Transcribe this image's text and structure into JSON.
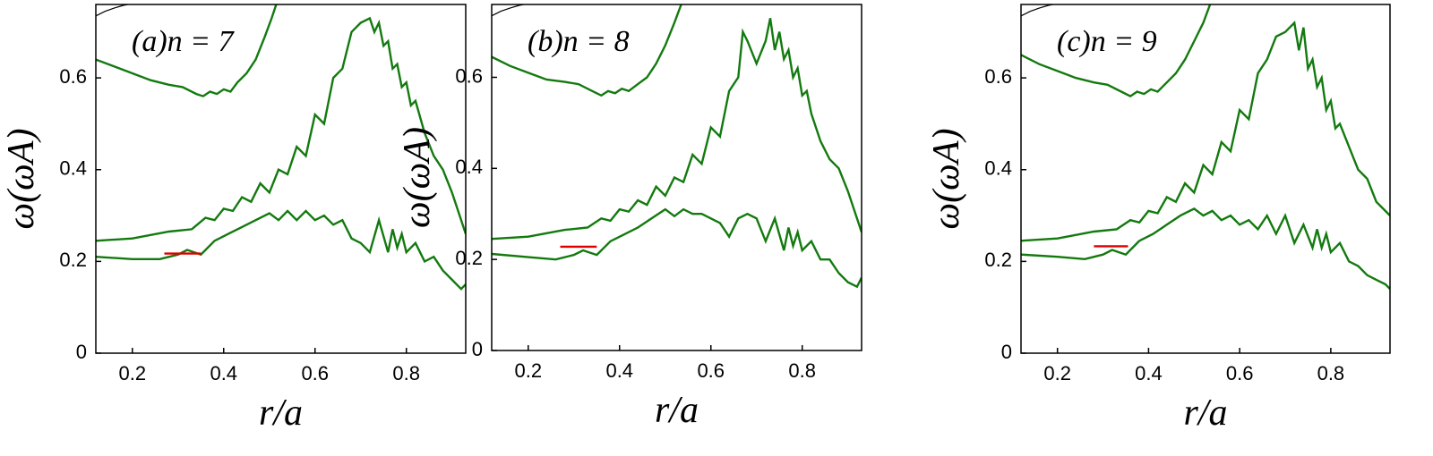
{
  "chart_data": [
    {
      "type": "line",
      "annotation": "(a)n = 7",
      "xlabel": "r/a",
      "ylabel": "ω(ωA)",
      "xlim": [
        0.12,
        0.93
      ],
      "ylim": [
        0,
        0.76
      ],
      "xticks": [
        0.2,
        0.4,
        0.6,
        0.8
      ],
      "yticks": [
        0,
        0.2,
        0.4,
        0.6
      ],
      "series": [
        {
          "color": "#000000",
          "x": [
            0.12,
            0.14,
            0.16,
            0.18,
            0.19
          ],
          "values": [
            0.735,
            0.745,
            0.752,
            0.758,
            0.76
          ]
        },
        {
          "color": "#137a0f",
          "x": [
            0.12,
            0.16,
            0.2,
            0.24,
            0.28,
            0.31,
            0.34,
            0.355,
            0.37,
            0.385,
            0.4,
            0.415,
            0.43,
            0.45,
            0.47,
            0.49,
            0.505,
            0.515
          ],
          "values": [
            0.64,
            0.625,
            0.61,
            0.595,
            0.585,
            0.58,
            0.565,
            0.56,
            0.57,
            0.565,
            0.575,
            0.57,
            0.59,
            0.61,
            0.64,
            0.69,
            0.73,
            0.76
          ]
        },
        {
          "color": "#137a0f",
          "x": [
            0.12,
            0.2,
            0.28,
            0.33,
            0.36,
            0.38,
            0.4,
            0.42,
            0.44,
            0.46,
            0.48,
            0.5,
            0.52,
            0.54,
            0.56,
            0.58,
            0.6,
            0.62,
            0.64,
            0.66,
            0.68,
            0.7,
            0.72,
            0.73,
            0.74,
            0.75,
            0.76,
            0.77,
            0.78,
            0.79,
            0.8,
            0.81,
            0.82,
            0.84,
            0.86,
            0.88,
            0.9,
            0.93
          ],
          "values": [
            0.245,
            0.25,
            0.265,
            0.27,
            0.295,
            0.29,
            0.315,
            0.31,
            0.34,
            0.33,
            0.37,
            0.35,
            0.4,
            0.39,
            0.45,
            0.43,
            0.52,
            0.5,
            0.6,
            0.62,
            0.7,
            0.72,
            0.73,
            0.7,
            0.72,
            0.67,
            0.68,
            0.62,
            0.63,
            0.58,
            0.59,
            0.54,
            0.55,
            0.48,
            0.43,
            0.4,
            0.35,
            0.26
          ]
        },
        {
          "color": "#137a0f",
          "x": [
            0.12,
            0.2,
            0.26,
            0.3,
            0.32,
            0.35,
            0.38,
            0.41,
            0.44,
            0.47,
            0.5,
            0.52,
            0.54,
            0.56,
            0.58,
            0.6,
            0.62,
            0.64,
            0.66,
            0.68,
            0.7,
            0.72,
            0.74,
            0.76,
            0.77,
            0.78,
            0.79,
            0.8,
            0.82,
            0.84,
            0.86,
            0.88,
            0.9,
            0.92,
            0.93
          ],
          "values": [
            0.21,
            0.205,
            0.205,
            0.215,
            0.225,
            0.215,
            0.245,
            0.26,
            0.275,
            0.29,
            0.305,
            0.29,
            0.31,
            0.29,
            0.31,
            0.29,
            0.3,
            0.28,
            0.29,
            0.25,
            0.24,
            0.22,
            0.29,
            0.22,
            0.27,
            0.23,
            0.26,
            0.22,
            0.24,
            0.2,
            0.21,
            0.18,
            0.16,
            0.14,
            0.15
          ]
        },
        {
          "color": "#e00000",
          "x": [
            0.27,
            0.35
          ],
          "values": [
            0.217,
            0.217
          ]
        }
      ]
    },
    {
      "type": "line",
      "annotation": "(b)n = 8",
      "xlabel": "r/a",
      "ylabel": "ω(ωA)",
      "xlim": [
        0.12,
        0.93
      ],
      "ylim": [
        0,
        0.76
      ],
      "xticks": [
        0.2,
        0.4,
        0.6,
        0.8
      ],
      "yticks": [
        0,
        0.2,
        0.4,
        0.6
      ],
      "series": [
        {
          "color": "#000000",
          "x": [
            0.12,
            0.14,
            0.16,
            0.18,
            0.19
          ],
          "values": [
            0.735,
            0.745,
            0.752,
            0.758,
            0.76
          ]
        },
        {
          "color": "#137a0f",
          "x": [
            0.12,
            0.16,
            0.2,
            0.24,
            0.28,
            0.31,
            0.34,
            0.36,
            0.375,
            0.39,
            0.405,
            0.42,
            0.44,
            0.46,
            0.48,
            0.5,
            0.52,
            0.535
          ],
          "values": [
            0.645,
            0.625,
            0.61,
            0.595,
            0.59,
            0.585,
            0.57,
            0.56,
            0.57,
            0.565,
            0.575,
            0.57,
            0.585,
            0.6,
            0.63,
            0.67,
            0.72,
            0.76
          ]
        },
        {
          "color": "#137a0f",
          "x": [
            0.12,
            0.2,
            0.28,
            0.33,
            0.36,
            0.38,
            0.4,
            0.42,
            0.44,
            0.46,
            0.48,
            0.5,
            0.52,
            0.54,
            0.56,
            0.58,
            0.6,
            0.62,
            0.64,
            0.66,
            0.67,
            0.68,
            0.7,
            0.72,
            0.73,
            0.74,
            0.75,
            0.76,
            0.77,
            0.78,
            0.79,
            0.8,
            0.81,
            0.82,
            0.84,
            0.86,
            0.88,
            0.9,
            0.93
          ],
          "values": [
            0.245,
            0.25,
            0.265,
            0.27,
            0.29,
            0.285,
            0.31,
            0.305,
            0.33,
            0.32,
            0.36,
            0.34,
            0.38,
            0.37,
            0.43,
            0.41,
            0.49,
            0.47,
            0.57,
            0.6,
            0.7,
            0.68,
            0.63,
            0.68,
            0.73,
            0.66,
            0.7,
            0.64,
            0.66,
            0.6,
            0.62,
            0.56,
            0.57,
            0.52,
            0.46,
            0.42,
            0.4,
            0.35,
            0.26
          ]
        },
        {
          "color": "#137a0f",
          "x": [
            0.12,
            0.2,
            0.26,
            0.3,
            0.32,
            0.35,
            0.38,
            0.41,
            0.44,
            0.47,
            0.5,
            0.52,
            0.54,
            0.56,
            0.58,
            0.6,
            0.62,
            0.64,
            0.66,
            0.68,
            0.7,
            0.72,
            0.74,
            0.76,
            0.77,
            0.78,
            0.79,
            0.8,
            0.82,
            0.84,
            0.86,
            0.88,
            0.9,
            0.92,
            0.93
          ],
          "values": [
            0.212,
            0.205,
            0.2,
            0.21,
            0.22,
            0.21,
            0.24,
            0.255,
            0.27,
            0.29,
            0.31,
            0.295,
            0.31,
            0.3,
            0.3,
            0.29,
            0.28,
            0.25,
            0.29,
            0.3,
            0.29,
            0.24,
            0.29,
            0.22,
            0.27,
            0.23,
            0.26,
            0.22,
            0.24,
            0.2,
            0.2,
            0.17,
            0.15,
            0.14,
            0.16
          ]
        },
        {
          "color": "#e00000",
          "x": [
            0.27,
            0.35
          ],
          "values": [
            0.228,
            0.228
          ]
        }
      ]
    },
    {
      "type": "line",
      "annotation": "(c)n = 9",
      "xlabel": "r/a",
      "ylabel": "ω(ωA)",
      "xlim": [
        0.12,
        0.93
      ],
      "ylim": [
        0,
        0.76
      ],
      "xticks": [
        0.2,
        0.4,
        0.6,
        0.8
      ],
      "yticks": [
        0,
        0.2,
        0.4,
        0.6
      ],
      "series": [
        {
          "color": "#000000",
          "x": [
            0.12,
            0.14,
            0.16,
            0.18,
            0.19
          ],
          "values": [
            0.735,
            0.745,
            0.752,
            0.758,
            0.76
          ]
        },
        {
          "color": "#137a0f",
          "x": [
            0.12,
            0.16,
            0.2,
            0.24,
            0.28,
            0.31,
            0.34,
            0.36,
            0.375,
            0.39,
            0.405,
            0.42,
            0.44,
            0.46,
            0.48,
            0.5,
            0.52,
            0.535
          ],
          "values": [
            0.65,
            0.63,
            0.615,
            0.6,
            0.59,
            0.585,
            0.57,
            0.56,
            0.57,
            0.565,
            0.575,
            0.57,
            0.59,
            0.61,
            0.64,
            0.68,
            0.72,
            0.76
          ]
        },
        {
          "color": "#137a0f",
          "x": [
            0.12,
            0.2,
            0.28,
            0.33,
            0.36,
            0.38,
            0.4,
            0.42,
            0.44,
            0.46,
            0.48,
            0.5,
            0.52,
            0.54,
            0.56,
            0.58,
            0.6,
            0.62,
            0.64,
            0.66,
            0.68,
            0.7,
            0.72,
            0.73,
            0.74,
            0.75,
            0.76,
            0.77,
            0.78,
            0.79,
            0.8,
            0.81,
            0.82,
            0.84,
            0.86,
            0.88,
            0.9,
            0.93
          ],
          "values": [
            0.245,
            0.25,
            0.265,
            0.27,
            0.29,
            0.285,
            0.31,
            0.305,
            0.34,
            0.33,
            0.37,
            0.35,
            0.41,
            0.39,
            0.46,
            0.44,
            0.53,
            0.51,
            0.61,
            0.64,
            0.69,
            0.7,
            0.72,
            0.66,
            0.71,
            0.62,
            0.64,
            0.58,
            0.6,
            0.53,
            0.55,
            0.49,
            0.5,
            0.45,
            0.4,
            0.38,
            0.33,
            0.3
          ]
        },
        {
          "color": "#137a0f",
          "x": [
            0.12,
            0.2,
            0.26,
            0.3,
            0.32,
            0.35,
            0.38,
            0.41,
            0.44,
            0.47,
            0.5,
            0.52,
            0.54,
            0.56,
            0.58,
            0.6,
            0.62,
            0.64,
            0.66,
            0.68,
            0.7,
            0.72,
            0.74,
            0.76,
            0.77,
            0.78,
            0.79,
            0.8,
            0.82,
            0.84,
            0.86,
            0.88,
            0.9,
            0.92,
            0.93
          ],
          "values": [
            0.215,
            0.21,
            0.205,
            0.215,
            0.225,
            0.215,
            0.245,
            0.26,
            0.28,
            0.3,
            0.315,
            0.3,
            0.31,
            0.29,
            0.3,
            0.28,
            0.29,
            0.27,
            0.3,
            0.26,
            0.3,
            0.24,
            0.28,
            0.23,
            0.27,
            0.23,
            0.26,
            0.22,
            0.24,
            0.2,
            0.19,
            0.17,
            0.16,
            0.15,
            0.14
          ]
        },
        {
          "color": "#e00000",
          "x": [
            0.28,
            0.355
          ],
          "values": [
            0.233,
            0.233
          ]
        }
      ]
    }
  ]
}
